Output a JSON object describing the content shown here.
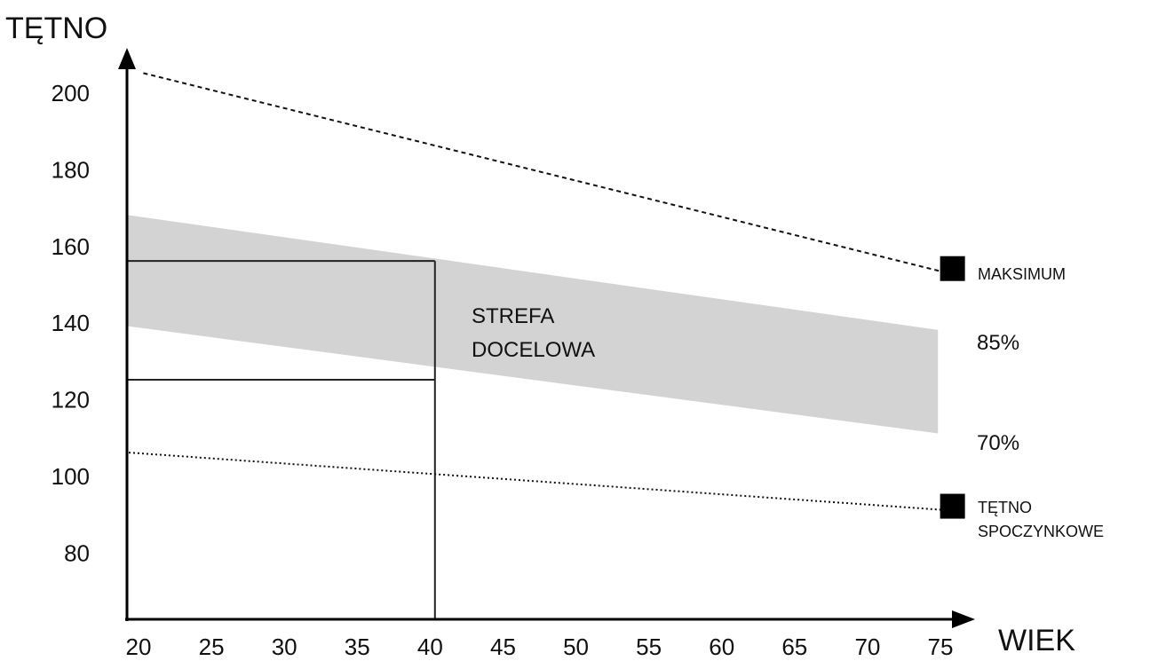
{
  "chart_data": {
    "type": "line",
    "ylabel": "TĘTNO",
    "xlabel": "WIEK",
    "x_ticks": [
      "20",
      "25",
      "30",
      "35",
      "40",
      "45",
      "50",
      "55",
      "60",
      "65",
      "70",
      "75"
    ],
    "y_ticks": [
      "200",
      "180",
      "160",
      "140",
      "120",
      "100",
      "80"
    ],
    "xlim": [
      20,
      77
    ],
    "ylim": [
      65,
      210
    ],
    "series": [
      {
        "name": "MAKSIMUM",
        "style": "dashed",
        "x": [
          21,
          76
        ],
        "y": [
          205,
          153
        ]
      },
      {
        "name": "TĘTNO SPOCZYNKOWE",
        "style": "dotted",
        "x": [
          20,
          76
        ],
        "y": [
          106,
          91
        ]
      }
    ],
    "band": {
      "label": [
        "STREFA",
        "DOCELOWA"
      ],
      "x": [
        20,
        75.5
      ],
      "upper": [
        168,
        138
      ],
      "lower": [
        139,
        111
      ],
      "upper_label": "85%",
      "lower_label": "70%",
      "color": "#d3d3d3"
    },
    "example": {
      "age": 41,
      "upper": 156,
      "lower": 125
    },
    "markers": [
      {
        "label": "MAKSIMUM",
        "x": 76.5,
        "y": 154
      },
      {
        "label_lines": [
          "TĘTNO",
          "SPOCZYNKOWE"
        ],
        "x": 76.5,
        "y": 92
      }
    ],
    "grid": false,
    "legend": "right"
  }
}
